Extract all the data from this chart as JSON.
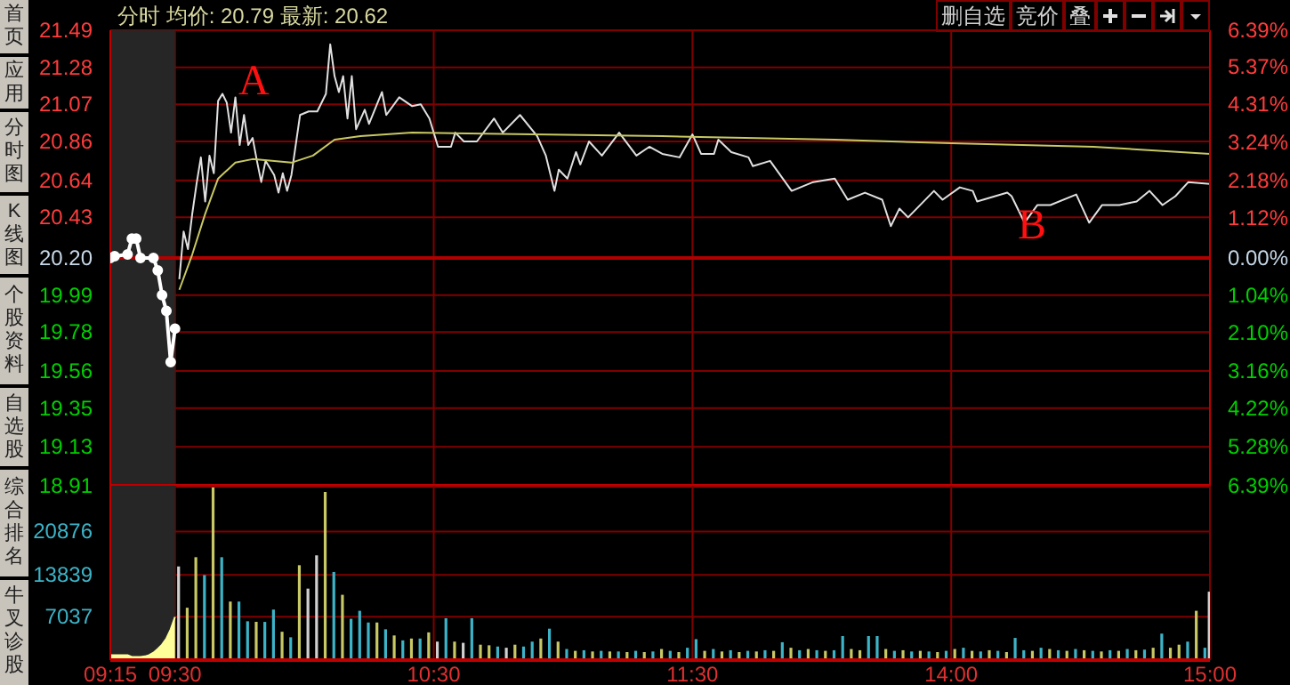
{
  "chart_data": [
    {
      "type": "line",
      "title": "分时 均价: 20.79 最新: 20.62",
      "tick_labels": "y",
      "grid": true,
      "categories": [
        "09:15",
        null,
        null,
        null,
        null,
        null,
        null,
        null,
        null,
        null,
        null,
        null,
        null,
        null,
        null,
        "09:30",
        null,
        null,
        null,
        null,
        null,
        null,
        null,
        null,
        null,
        null,
        null,
        null,
        null,
        null,
        null,
        null,
        null,
        null,
        null,
        null,
        null,
        null,
        null,
        null,
        null,
        null,
        null,
        null,
        null,
        null,
        null,
        null,
        null,
        null,
        null,
        null,
        null,
        null,
        null,
        null,
        null,
        null,
        null,
        null,
        null,
        null,
        null,
        null,
        null,
        null,
        null,
        null,
        null,
        null,
        null,
        null,
        null,
        null,
        null,
        "10:30",
        null,
        null,
        null,
        null,
        null,
        null,
        null,
        null,
        null,
        null,
        null,
        null,
        null,
        null,
        null,
        null,
        null,
        null,
        null,
        null,
        null,
        null,
        null,
        null,
        null,
        null,
        null,
        null,
        null,
        null,
        null,
        null,
        null,
        null,
        null,
        null,
        null,
        null,
        null,
        null,
        null,
        null,
        null,
        null,
        null,
        null,
        null,
        null,
        null,
        null,
        null,
        null,
        null,
        null,
        null,
        null,
        null,
        null,
        null,
        "11:30",
        null,
        null,
        null,
        null,
        null,
        null,
        null,
        null,
        null,
        null,
        null,
        null,
        null,
        null,
        null,
        null,
        null,
        null,
        null,
        null,
        null,
        null,
        null,
        null,
        null,
        null,
        null,
        null,
        null,
        null,
        null,
        null,
        null,
        null,
        null,
        null,
        null,
        null,
        null,
        null,
        null,
        null,
        null,
        null,
        null,
        null,
        null,
        null,
        null,
        null,
        null,
        null,
        null,
        null,
        null,
        null,
        null,
        null,
        null,
        "14:00",
        null,
        null,
        null,
        null,
        null,
        null,
        null,
        null,
        null,
        null,
        null,
        null,
        null,
        null,
        null,
        null,
        null,
        null,
        null,
        null,
        null,
        null,
        null,
        null,
        null,
        null,
        null,
        null,
        null,
        null,
        null,
        null,
        null,
        null,
        null,
        null,
        null,
        null,
        null,
        null,
        null,
        null,
        null,
        null,
        null,
        null,
        null,
        null,
        null,
        null,
        null,
        null,
        null,
        null,
        null,
        null,
        null,
        null,
        null,
        "15:00"
      ],
      "ylim": [
        18.91,
        21.49
      ],
      "yticks": [
        21.49,
        21.28,
        21.07,
        20.86,
        20.64,
        20.43,
        {
          "value": 20.2,
          "label": "20.20"
        },
        19.99,
        19.78,
        19.56,
        19.35,
        19.13,
        18.91
      ],
      "y2lim": [
        -6.39,
        6.39
      ],
      "y2ticks": [
        {
          "value": 6.39,
          "label": "6.39%"
        },
        {
          "value": 5.37,
          "label": "5.37%"
        },
        {
          "value": 4.31,
          "label": "4.31%"
        },
        {
          "value": 3.24,
          "label": "3.24%"
        },
        {
          "value": 2.18,
          "label": "2.18%"
        },
        {
          "value": 1.12,
          "label": "1.12%"
        },
        {
          "value": 0,
          "label": "0.00%"
        },
        {
          "value": -1.04,
          "label": "1.04%"
        },
        {
          "value": -2.1,
          "label": "2.10%"
        },
        {
          "value": -3.16,
          "label": "3.16%"
        },
        {
          "value": -4.22,
          "label": "4.22%"
        },
        {
          "value": -5.28,
          "label": "5.28%"
        },
        {
          "value": -6.39,
          "label": "6.39%"
        }
      ],
      "ref_lines": [
        {
          "axis": "y",
          "value": 20.2,
          "color": "#b00000"
        }
      ],
      "bands": [
        {
          "axis": "x",
          "from": "09:15",
          "to": "09:30",
          "color": "#262626"
        }
      ],
      "annotations": [
        "首页",
        "应用",
        "分时图",
        "K线图",
        "个股资料",
        "自选股",
        "综合排名",
        "牛叉诊股",
        "删自选",
        "竞价",
        "叠",
        "A",
        "B"
      ],
      "series": [
        {
          "color": "#ffffff",
          "marker": "circle",
          "values": [
            20.2,
            20.21,
            null,
            null,
            20.22,
            20.31,
            20.31,
            20.2,
            null,
            null,
            20.2,
            20.13,
            19.99,
            19.9,
            19.61,
            19.8,
            null,
            null,
            null,
            null,
            null,
            null,
            null,
            null,
            null,
            null,
            null,
            null,
            null,
            null,
            null,
            null,
            null,
            null,
            null,
            null,
            null,
            null,
            null,
            null,
            null,
            null,
            null,
            null,
            null,
            null,
            null,
            null,
            null,
            null,
            null,
            null,
            null,
            null,
            null,
            null,
            null,
            null,
            null,
            null,
            null,
            null,
            null,
            null,
            null,
            null,
            null,
            null,
            null,
            null,
            null,
            null,
            null,
            null,
            null,
            null,
            null,
            null,
            null,
            null,
            null,
            null,
            null,
            null,
            null,
            null,
            null,
            null,
            null,
            null,
            null,
            null,
            null,
            null,
            null,
            null,
            null,
            null,
            null,
            null,
            null,
            null,
            null,
            null,
            null,
            null,
            null,
            null,
            null,
            null,
            null,
            null,
            null,
            null,
            null,
            null,
            null,
            null,
            null,
            null,
            null,
            null,
            null,
            null,
            null,
            null,
            null,
            null,
            null,
            null,
            null,
            null,
            null,
            null,
            null,
            null,
            null,
            null,
            null,
            null,
            null,
            null,
            null,
            null,
            null,
            null,
            null,
            null,
            null,
            null,
            null,
            null,
            null,
            null,
            null,
            null,
            null,
            null,
            null,
            null,
            null,
            null,
            null,
            null,
            null,
            null,
            null,
            null,
            null,
            null,
            null,
            null,
            null,
            null,
            null,
            null,
            null,
            null,
            null,
            null,
            null,
            null,
            null,
            null,
            null,
            null,
            null,
            null,
            null,
            null,
            null,
            null,
            null,
            null,
            null,
            null,
            null,
            null,
            null,
            null,
            null,
            null,
            null,
            null,
            null,
            null,
            null,
            null,
            null,
            null,
            null,
            null,
            null,
            null,
            null,
            null,
            null,
            null,
            null,
            null,
            null,
            null,
            null,
            null,
            null,
            null,
            null,
            null,
            null,
            null,
            null,
            null,
            null,
            null,
            null,
            null,
            null,
            null,
            null,
            null,
            null,
            null,
            null,
            null,
            null,
            null,
            null,
            null,
            null,
            null,
            null,
            null,
            null,
            null,
            null,
            null
          ]
        },
        {
          "color": "#e0e0e0",
          "values": [
            null,
            null,
            null,
            null,
            null,
            null,
            null,
            null,
            null,
            null,
            null,
            null,
            null,
            null,
            null,
            null,
            20.08,
            20.35,
            20.25,
            20.45,
            20.62,
            20.77,
            20.52,
            20.78,
            20.68,
            21.09,
            21.13,
            21.08,
            20.91,
            21.11,
            20.84,
            21.01,
            20.84,
            20.88,
            20.75,
            20.63,
            20.75,
            null,
            20.67,
            20.57,
            20.68,
            20.58,
            20.67,
            null,
            21.01,
            null,
            21.03,
            null,
            21.03,
            null,
            21.13,
            21.41,
            21.23,
            21.14,
            21.23,
            20.99,
            21.23,
            20.93,
            null,
            21.04,
            20.96,
            null,
            null,
            21.14,
            21.01,
            null,
            null,
            21.11,
            null,
            null,
            21.06,
            null,
            21.07,
            null,
            20.99,
            null,
            20.83,
            null,
            null,
            20.83,
            20.91,
            null,
            20.86,
            null,
            null,
            20.86,
            null,
            null,
            null,
            20.99,
            null,
            20.91,
            null,
            null,
            null,
            21.01,
            null,
            null,
            null,
            20.89,
            null,
            20.78,
            null,
            20.58,
            20.7,
            null,
            20.65,
            null,
            20.8,
            20.73,
            null,
            20.86,
            null,
            null,
            20.78,
            null,
            null,
            null,
            20.91,
            null,
            null,
            null,
            20.78,
            null,
            null,
            20.83,
            null,
            null,
            20.79,
            null,
            null,
            null,
            20.77,
            null,
            null,
            20.9,
            null,
            20.79,
            null,
            null,
            20.79,
            20.87,
            null,
            null,
            20.8,
            null,
            null,
            null,
            20.77,
            20.72,
            null,
            null,
            null,
            20.75,
            null,
            null,
            null,
            null,
            20.58,
            null,
            null,
            null,
            null,
            20.63,
            null,
            null,
            null,
            null,
            20.65,
            null,
            null,
            20.53,
            null,
            null,
            null,
            20.57,
            null,
            null,
            null,
            20.53,
            null,
            20.38,
            null,
            20.48,
            null,
            20.43,
            null,
            null,
            null,
            null,
            null,
            20.58,
            null,
            20.53,
            null,
            null,
            null,
            20.6,
            null,
            null,
            20.58,
            20.52,
            null,
            null,
            null,
            null,
            null,
            null,
            20.57,
            20.55,
            null,
            null,
            20.4,
            null,
            null,
            20.5,
            null,
            null,
            20.5,
            null,
            null,
            null,
            null,
            null,
            20.56,
            null,
            null,
            20.4,
            null,
            null,
            20.5,
            null,
            null,
            null,
            20.5,
            null,
            null,
            null,
            20.52,
            null,
            null,
            20.58,
            null,
            null,
            20.5,
            null,
            null,
            20.55,
            null,
            null,
            20.63,
            null,
            null,
            null,
            null,
            20.62
          ]
        },
        {
          "color": "#c8c864",
          "values": [
            null,
            null,
            null,
            null,
            null,
            null,
            null,
            null,
            null,
            null,
            null,
            null,
            null,
            null,
            null,
            null,
            20.02,
            null,
            null,
            20.22,
            null,
            null,
            20.45,
            null,
            null,
            20.65,
            null,
            null,
            null,
            20.74,
            null,
            null,
            null,
            20.76,
            null,
            null,
            null,
            null,
            null,
            null,
            null,
            null,
            20.74,
            null,
            null,
            null,
            null,
            20.78,
            null,
            null,
            null,
            null,
            20.87,
            null,
            null,
            null,
            null,
            null,
            20.89,
            null,
            null,
            null,
            null,
            null,
            null,
            null,
            null,
            null,
            null,
            null,
            20.91,
            null,
            null,
            null,
            null,
            null,
            null,
            null,
            null,
            null,
            null,
            null,
            null,
            null,
            null,
            null,
            null,
            null,
            null,
            null,
            null,
            null,
            null,
            null,
            null,
            null,
            null,
            null,
            null,
            null,
            null,
            null,
            null,
            null,
            null,
            null,
            null,
            null,
            null,
            null,
            null,
            null,
            null,
            null,
            null,
            null,
            null,
            null,
            null,
            null,
            null,
            null,
            null,
            null,
            null,
            null,
            null,
            null,
            20.89,
            null,
            null,
            null,
            null,
            null,
            null,
            null,
            null,
            null,
            null,
            null,
            null,
            null,
            null,
            null,
            null,
            null,
            null,
            null,
            null,
            null,
            null,
            null,
            null,
            null,
            null,
            null,
            null,
            null,
            null,
            null,
            null,
            null,
            null,
            null,
            null,
            null,
            null,
            null,
            20.87,
            null,
            null,
            null,
            null,
            null,
            null,
            null,
            null,
            null,
            null,
            null,
            null,
            null,
            null,
            null,
            null,
            null,
            null,
            null,
            null,
            null,
            null,
            null,
            null,
            null,
            null,
            20.85,
            null,
            null,
            null,
            null,
            null,
            null,
            null,
            null,
            null,
            null,
            null,
            null,
            null,
            null,
            null,
            null,
            null,
            null,
            null,
            null,
            null,
            null,
            null,
            null,
            null,
            null,
            null,
            null,
            null,
            null,
            null,
            null,
            20.83,
            null,
            null,
            null,
            null,
            null,
            null,
            null,
            null,
            null,
            null,
            null,
            null,
            null,
            null,
            null,
            null,
            null,
            null,
            null,
            null,
            null,
            null,
            null,
            null,
            null,
            null,
            20.79
          ]
        }
      ]
    },
    {
      "type": "bar",
      "grid": true,
      "categories": [
        "09:15",
        null,
        null,
        null,
        null,
        null,
        null,
        null,
        null,
        null,
        null,
        null,
        null,
        null,
        null,
        "09:30",
        null,
        null,
        null,
        null,
        null,
        null,
        null,
        null,
        null,
        null,
        null,
        null,
        null,
        null,
        null,
        null,
        null,
        null,
        null,
        null,
        null,
        null,
        null,
        null,
        null,
        null,
        null,
        null,
        null,
        null,
        null,
        null,
        null,
        null,
        null,
        null,
        null,
        null,
        null,
        null,
        null,
        null,
        null,
        null,
        null,
        null,
        null,
        null,
        null,
        null,
        null,
        null,
        null,
        null,
        null,
        null,
        null,
        null,
        null,
        "10:30",
        null,
        null,
        null,
        null,
        null,
        null,
        null,
        null,
        null,
        null,
        null,
        null,
        null,
        null,
        null,
        null,
        null,
        null,
        null,
        null,
        null,
        null,
        null,
        null,
        null,
        null,
        null,
        null,
        null,
        null,
        null,
        null,
        null,
        null,
        null,
        null,
        null,
        null,
        null,
        null,
        null,
        null,
        null,
        null,
        null,
        null,
        null,
        null,
        null,
        null,
        null,
        null,
        null,
        null,
        null,
        null,
        null,
        null,
        null,
        "11:30",
        null,
        null,
        null,
        null,
        null,
        null,
        null,
        null,
        null,
        null,
        null,
        null,
        null,
        null,
        null,
        null,
        null,
        null,
        null,
        null,
        null,
        null,
        null,
        null,
        null,
        null,
        null,
        null,
        null,
        null,
        null,
        null,
        null,
        null,
        null,
        null,
        null,
        null,
        null,
        null,
        null,
        null,
        null,
        null,
        null,
        null,
        null,
        null,
        null,
        null,
        null,
        null,
        null,
        null,
        null,
        null,
        null,
        null,
        null,
        "14:00",
        null,
        null,
        null,
        null,
        null,
        null,
        null,
        null,
        null,
        null,
        null,
        null,
        null,
        null,
        null,
        null,
        null,
        null,
        null,
        null,
        null,
        null,
        null,
        null,
        null,
        null,
        null,
        null,
        null,
        null,
        null,
        null,
        null,
        null,
        null,
        null,
        null,
        null,
        null,
        null,
        null,
        null,
        null,
        null,
        null,
        null,
        null,
        null,
        null,
        null,
        null,
        null,
        null,
        null,
        null,
        null,
        null,
        null,
        null,
        "15:00"
      ],
      "ylim": [
        0,
        28300
      ],
      "yticks": [
        7037,
        13839,
        20876
      ],
      "bands": [
        {
          "axis": "x",
          "from": "09:15",
          "to": "09:30",
          "color": "#262626"
        }
      ],
      "series": [
        {
          "type": "area",
          "color": "#ffff99",
          "values": [
            800,
            800,
            800,
            800,
            800,
            500,
            500,
            500,
            600,
            800,
            1200,
            1800,
            2500,
            3500,
            5000,
            7000,
            null,
            null,
            null,
            null,
            null,
            null,
            null,
            null,
            null,
            null,
            null,
            null,
            null,
            null,
            null,
            null,
            null,
            null,
            null,
            null,
            null,
            null,
            null,
            null,
            null,
            null,
            null,
            null,
            null,
            null,
            null,
            null,
            null,
            null,
            null,
            null,
            null,
            null,
            null,
            null,
            null,
            null,
            null,
            null,
            null,
            null,
            null,
            null,
            null,
            null,
            null,
            null,
            null,
            null,
            null,
            null,
            null,
            null,
            null,
            null,
            null,
            null,
            null,
            null,
            null,
            null,
            null,
            null,
            null,
            null,
            null,
            null,
            null,
            null,
            null,
            null,
            null,
            null,
            null,
            null,
            null,
            null,
            null,
            null,
            null,
            null,
            null,
            null,
            null,
            null,
            null,
            null,
            null,
            null,
            null,
            null,
            null,
            null,
            null,
            null,
            null,
            null,
            null,
            null,
            null,
            null,
            null,
            null,
            null,
            null,
            null,
            null,
            null,
            null,
            null,
            null,
            null,
            null,
            null,
            null,
            null,
            null,
            null,
            null,
            null,
            null,
            null,
            null,
            null,
            null,
            null,
            null,
            null,
            null,
            null,
            null,
            null,
            null,
            null,
            null,
            null,
            null,
            null,
            null,
            null,
            null,
            null,
            null,
            null,
            null,
            null,
            null,
            null,
            null,
            null,
            null,
            null,
            null,
            null,
            null,
            null,
            null,
            null,
            null,
            null,
            null,
            null,
            null,
            null,
            null,
            null,
            null,
            null,
            null,
            null,
            null,
            null,
            null,
            null,
            null,
            null,
            null,
            null,
            null,
            null,
            null,
            null,
            null,
            null,
            null,
            null,
            null,
            null,
            null,
            null,
            null,
            null,
            null,
            null,
            null,
            null,
            null,
            null,
            null,
            null,
            null,
            null,
            null,
            null,
            null,
            null,
            null,
            null,
            null,
            null,
            null,
            null,
            null,
            null,
            null,
            null,
            null,
            null,
            null,
            null,
            null,
            null,
            null,
            null,
            null,
            null,
            null,
            null,
            null,
            null,
            null,
            null,
            null,
            null,
            null
          ]
        },
        {
          "color": "#3cb4c8",
          "values": [
            null,
            null,
            null,
            null,
            null,
            null,
            null,
            null,
            null,
            null,
            null,
            null,
            null,
            null,
            null,
            null,
            15200,
            null,
            8500,
            null,
            16700,
            null,
            13800,
            null,
            28000,
            null,
            16700,
            null,
            9500,
            null,
            9500,
            null,
            6300,
            null,
            6200,
            null,
            6200,
            null,
            8200,
            null,
            4600,
            null,
            3700,
            null,
            15400,
            null,
            11600,
            null,
            17000,
            null,
            27300,
            null,
            14300,
            null,
            10600,
            null,
            6700,
            null,
            8000,
            null,
            6100,
            null,
            6100,
            null,
            5000,
            null,
            4000,
            null,
            3200,
            null,
            3500,
            null,
            3500,
            null,
            4500,
            null,
            3000,
            null,
            6800,
            null,
            3000,
            null,
            2800,
            null,
            6800,
            null,
            2500,
            null,
            2400,
            null,
            2200,
            null,
            2000,
            null,
            2500,
            null,
            2200,
            null,
            3000,
            null,
            3500,
            null,
            5100,
            null,
            3000,
            null,
            1800,
            null,
            1500,
            null,
            1600,
            null,
            1400,
            null,
            1500,
            null,
            1400,
            null,
            1400,
            null,
            1300,
            null,
            1500,
            null,
            1300,
            null,
            1400,
            null,
            1800,
            null,
            1500,
            null,
            1300,
            null,
            2000,
            null,
            3400,
            null,
            1500,
            null,
            1800,
            null,
            1400,
            null,
            1600,
            null,
            1300,
            null,
            1500,
            null,
            1400,
            null,
            1600,
            null,
            1500,
            null,
            2900,
            null,
            2000,
            null,
            1600,
            null,
            1800,
            null,
            1600,
            null,
            1500,
            null,
            1600,
            null,
            3900,
            null,
            1800,
            null,
            1600,
            null,
            3900,
            null,
            3900,
            null,
            1800,
            null,
            1500,
            null,
            1600,
            null,
            1400,
            null,
            1500,
            null,
            1400,
            null,
            1300,
            null,
            1500,
            null,
            1800,
            null,
            2000,
            null,
            1500,
            null,
            1400,
            null,
            1600,
            null,
            1500,
            null,
            1300,
            null,
            3600,
            null,
            1600,
            null,
            1500,
            null,
            2000,
            null,
            1800,
            null,
            1600,
            null,
            1500,
            null,
            1800,
            null,
            1600,
            null,
            1500,
            null,
            1400,
            null,
            1600,
            null,
            1500,
            null,
            1800,
            null,
            1600,
            null,
            1700,
            null,
            2000,
            null,
            4300,
            null,
            2000,
            null,
            2500,
            null,
            3000,
            null,
            8000,
            null,
            2000,
            11100
          ],
          "colors": [
            null,
            null,
            null,
            null,
            null,
            null,
            null,
            null,
            null,
            null,
            null,
            null,
            null,
            null,
            null,
            null,
            "#d0d0d0",
            null,
            "#c8c864",
            null,
            "#c8c864",
            null,
            "#3cb4c8",
            null,
            "#c8c864",
            null,
            "#3cb4c8",
            null,
            "#c8c864",
            null,
            "#3cb4c8",
            null,
            "#3cb4c8",
            null,
            "#c8c864",
            null,
            "#3cb4c8",
            null,
            "#3cb4c8",
            null,
            "#c8c864",
            null,
            "#3cb4c8",
            null,
            "#c8c864",
            null,
            "#d0d0d0",
            null,
            "#d0d0d0",
            null,
            "#c8c864",
            null,
            "#3cb4c8",
            null,
            "#c8c864",
            null,
            "#3cb4c8",
            null,
            "#3cb4c8",
            null,
            "#3cb4c8",
            null,
            "#c8c864",
            null,
            "#3cb4c8",
            null,
            "#c8c864",
            null,
            "#3cb4c8",
            null,
            "#c8c864",
            null,
            "#3cb4c8",
            null,
            "#c8c864",
            null,
            "#d0d0d0",
            null,
            "#3cb4c8",
            null,
            "#c8c864",
            null,
            "#d0d0d0",
            null,
            "#3cb4c8",
            null,
            "#c8c864",
            null,
            "#c8c864",
            null,
            "#3cb4c8",
            null,
            "#d0d0d0",
            null,
            "#c8c864",
            null,
            "#3cb4c8",
            null,
            "#3cb4c8",
            null,
            "#c8c864",
            null,
            "#3cb4c8",
            null,
            "#c8c864",
            null,
            "#3cb4c8",
            null,
            "#c8c864",
            null,
            "#3cb4c8",
            null,
            "#c8c864",
            null,
            "#3cb4c8",
            null,
            "#c8c864",
            null,
            "#3cb4c8",
            null,
            "#c8c864",
            null,
            "#3cb4c8",
            null,
            "#c8c864",
            null,
            "#3cb4c8",
            null,
            "#c8c864",
            null,
            "#3cb4c8",
            null,
            "#c8c864",
            null,
            "#3cb4c8",
            null,
            "#3cb4c8",
            null,
            "#c8c864",
            null,
            "#3cb4c8",
            null,
            "#c8c864",
            null,
            "#3cb4c8",
            null,
            "#c8c864",
            null,
            "#3cb4c8",
            null,
            "#c8c864",
            null,
            "#3cb4c8",
            null,
            "#c8c864",
            null,
            "#3cb4c8",
            null,
            "#c8c864",
            null,
            "#3cb4c8",
            null,
            "#c8c864",
            null,
            "#3cb4c8",
            null,
            "#c8c864",
            null,
            "#3cb4c8",
            null,
            "#3cb4c8",
            null,
            "#c8c864",
            null,
            "#c8c864",
            null,
            "#3cb4c8",
            null,
            "#3cb4c8",
            null,
            "#c8c864",
            null,
            "#3cb4c8",
            null,
            "#c8c864",
            null,
            "#3cb4c8",
            null,
            "#c8c864",
            null,
            "#3cb4c8",
            null,
            "#c8c864",
            null,
            "#3cb4c8",
            null,
            "#c8c864",
            null,
            "#3cb4c8",
            null,
            "#c8c864",
            null,
            "#3cb4c8",
            null,
            "#c8c864",
            null,
            "#3cb4c8",
            null,
            "#c8c864",
            null,
            "#3cb4c8",
            null,
            "#3cb4c8",
            null,
            "#c8c864",
            null,
            "#3cb4c8",
            null,
            "#c8c864",
            null,
            "#3cb4c8",
            null,
            "#c8c864",
            null,
            "#3cb4c8",
            null,
            "#c8c864",
            null,
            "#3cb4c8",
            null,
            "#c8c864",
            null,
            "#3cb4c8",
            null,
            "#c8c864",
            null,
            "#3cb4c8",
            null,
            "#c8c864",
            null,
            "#3cb4c8",
            null,
            "#c8c864",
            null,
            "#3cb4c8",
            null,
            "#c8c864",
            null,
            "#c8c864",
            null,
            "#3cb4c8",
            null,
            "#c8c864",
            null,
            "#3cb4c8",
            "#d0d0d0"
          ]
        }
      ]
    }
  ]
}
